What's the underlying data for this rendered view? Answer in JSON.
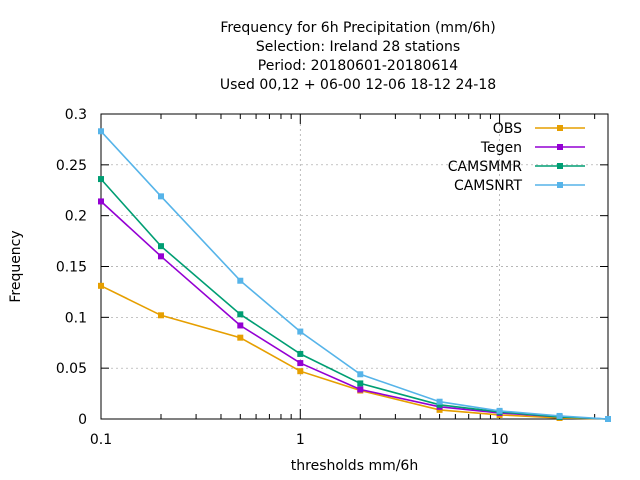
{
  "chart_data": {
    "type": "line",
    "title_lines": [
      "Frequency  for 6h Precipitation (mm/6h)",
      "Selection: Ireland     28 stations",
      "Period: 20180601-20180614",
      "Used  00,12  + 06-00 12-06 18-12 24-18"
    ],
    "xlabel": "thresholds mm/6h",
    "ylabel": "Frequency",
    "x_scale": "log",
    "xlim": [
      0.1,
      35
    ],
    "ylim": [
      0,
      0.3
    ],
    "x_ticks": [
      {
        "value": 0.1,
        "label": "0.1"
      },
      {
        "value": 1,
        "label": "1"
      },
      {
        "value": 10,
        "label": "10"
      }
    ],
    "y_ticks": [
      {
        "value": 0,
        "label": "0"
      },
      {
        "value": 0.05,
        "label": "0.05"
      },
      {
        "value": 0.1,
        "label": "0.1"
      },
      {
        "value": 0.15,
        "label": "0.15"
      },
      {
        "value": 0.2,
        "label": "0.2"
      },
      {
        "value": 0.25,
        "label": "0.25"
      },
      {
        "value": 0.3,
        "label": "0.3"
      }
    ],
    "x": [
      0.1,
      0.2,
      0.5,
      1,
      2,
      5,
      10,
      20,
      35
    ],
    "grid": true,
    "legend_position": "top-right",
    "series": [
      {
        "name": "OBS",
        "color": "#e69f00",
        "values": [
          0.131,
          0.102,
          0.08,
          0.047,
          0.028,
          0.009,
          0.004,
          0.001,
          0.0
        ]
      },
      {
        "name": "Tegen",
        "color": "#9400d3",
        "values": [
          0.214,
          0.16,
          0.092,
          0.055,
          0.029,
          0.012,
          0.006,
          0.002,
          0.0
        ]
      },
      {
        "name": "CAMSMMR",
        "color": "#009e73",
        "values": [
          0.236,
          0.17,
          0.103,
          0.064,
          0.035,
          0.014,
          0.007,
          0.002,
          0.0
        ]
      },
      {
        "name": "CAMSNRT",
        "color": "#56b4e9",
        "values": [
          0.283,
          0.219,
          0.136,
          0.086,
          0.044,
          0.017,
          0.008,
          0.003,
          0.0
        ]
      }
    ]
  }
}
